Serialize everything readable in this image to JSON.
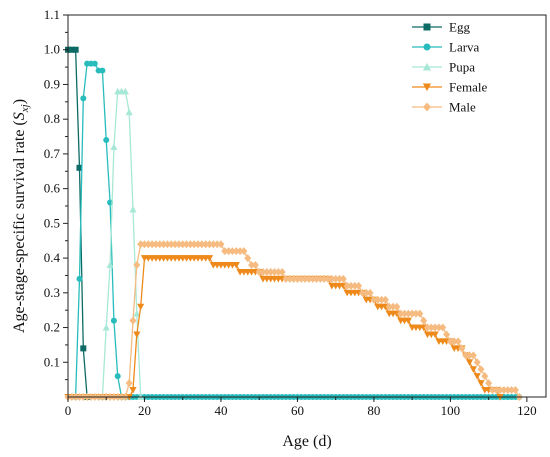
{
  "chart_data": {
    "type": "line",
    "title": "",
    "xlabel": "Age (d)",
    "ylabel": {
      "main": "Age-stage-specific survival rate (",
      "symbol": "S",
      "subscript": "xj",
      "close": ")"
    },
    "xlim": [
      0,
      125
    ],
    "ylim": [
      0,
      1.1
    ],
    "x_ticks": [
      "0",
      "20",
      "40",
      "60",
      "80",
      "100",
      "120"
    ],
    "y_ticks": [
      "0.1",
      "0.2",
      "0.3",
      "0.4",
      "0.5",
      "0.6",
      "0.7",
      "0.8",
      "0.9",
      "1.0",
      "1.1"
    ],
    "grid": false,
    "legend_position": "top-right",
    "series": [
      {
        "name": "Egg",
        "color": "#0d6b66",
        "marker": "square",
        "points": [
          [
            0,
            1.0
          ],
          [
            1,
            1.0
          ],
          [
            2,
            1.0
          ],
          [
            3,
            0.66
          ],
          [
            4,
            0.14
          ],
          [
            5,
            0
          ]
        ]
      },
      {
        "name": "Larva",
        "color": "#29bcbc",
        "marker": "circle",
        "points": [
          [
            2,
            0
          ],
          [
            3,
            0.34
          ],
          [
            4,
            0.86
          ],
          [
            5,
            0.96
          ],
          [
            6,
            0.96
          ],
          [
            7,
            0.96
          ],
          [
            8,
            0.94
          ],
          [
            9,
            0.94
          ],
          [
            10,
            0.74
          ],
          [
            11,
            0.56
          ],
          [
            12,
            0.22
          ],
          [
            13,
            0.06
          ],
          [
            14,
            0
          ],
          [
            20,
            0
          ],
          [
            40,
            0
          ],
          [
            60,
            0
          ],
          [
            80,
            0
          ],
          [
            100,
            0
          ],
          [
            118,
            0
          ]
        ]
      },
      {
        "name": "Pupa",
        "color": "#a8e8d6",
        "marker": "triangle-up",
        "points": [
          [
            9,
            0
          ],
          [
            10,
            0.2
          ],
          [
            11,
            0.38
          ],
          [
            12,
            0.72
          ],
          [
            13,
            0.88
          ],
          [
            14,
            0.88
          ],
          [
            15,
            0.88
          ],
          [
            16,
            0.82
          ],
          [
            17,
            0.54
          ],
          [
            18,
            0.24
          ],
          [
            19,
            0
          ]
        ]
      },
      {
        "name": "Female",
        "color": "#ee8a1c",
        "marker": "triangle-down",
        "points": [
          [
            0,
            0
          ],
          [
            10,
            0
          ],
          [
            16,
            0
          ],
          [
            17,
            0.02
          ],
          [
            18,
            0.18
          ],
          [
            19,
            0.26
          ],
          [
            20,
            0.4
          ],
          [
            30,
            0.4
          ],
          [
            37,
            0.4
          ],
          [
            38,
            0.38
          ],
          [
            44,
            0.38
          ],
          [
            45,
            0.36
          ],
          [
            50,
            0.36
          ],
          [
            51,
            0.34
          ],
          [
            68,
            0.34
          ],
          [
            69,
            0.32
          ],
          [
            72,
            0.32
          ],
          [
            73,
            0.3
          ],
          [
            77,
            0.3
          ],
          [
            78,
            0.28
          ],
          [
            80,
            0.28
          ],
          [
            81,
            0.26
          ],
          [
            83,
            0.26
          ],
          [
            84,
            0.24
          ],
          [
            86,
            0.24
          ],
          [
            87,
            0.22
          ],
          [
            89,
            0.22
          ],
          [
            90,
            0.2
          ],
          [
            93,
            0.2
          ],
          [
            94,
            0.18
          ],
          [
            96,
            0.18
          ],
          [
            97,
            0.16
          ],
          [
            100,
            0.16
          ],
          [
            101,
            0.14
          ],
          [
            103,
            0.14
          ],
          [
            104,
            0.12
          ],
          [
            105,
            0.1
          ],
          [
            106,
            0.08
          ],
          [
            107,
            0.06
          ],
          [
            108,
            0.04
          ],
          [
            109,
            0.02
          ],
          [
            112,
            0.02
          ],
          [
            113,
            0
          ]
        ]
      },
      {
        "name": "Male",
        "color": "#f5bb80",
        "marker": "diamond",
        "points": [
          [
            0,
            0
          ],
          [
            15,
            0
          ],
          [
            16,
            0.04
          ],
          [
            17,
            0.22
          ],
          [
            18,
            0.38
          ],
          [
            19,
            0.44
          ],
          [
            30,
            0.44
          ],
          [
            40,
            0.44
          ],
          [
            41,
            0.42
          ],
          [
            46,
            0.42
          ],
          [
            47,
            0.4
          ],
          [
            48,
            0.38
          ],
          [
            49,
            0.38
          ],
          [
            50,
            0.36
          ],
          [
            56,
            0.36
          ],
          [
            57,
            0.34
          ],
          [
            72,
            0.34
          ],
          [
            73,
            0.32
          ],
          [
            76,
            0.32
          ],
          [
            77,
            0.3
          ],
          [
            79,
            0.3
          ],
          [
            80,
            0.28
          ],
          [
            83,
            0.28
          ],
          [
            84,
            0.26
          ],
          [
            86,
            0.26
          ],
          [
            87,
            0.24
          ],
          [
            92,
            0.24
          ],
          [
            93,
            0.22
          ],
          [
            94,
            0.2
          ],
          [
            98,
            0.2
          ],
          [
            99,
            0.18
          ],
          [
            100,
            0.16
          ],
          [
            102,
            0.16
          ],
          [
            103,
            0.14
          ],
          [
            104,
            0.12
          ],
          [
            106,
            0.12
          ],
          [
            107,
            0.1
          ],
          [
            108,
            0.08
          ],
          [
            109,
            0.06
          ],
          [
            110,
            0.04
          ],
          [
            111,
            0.02
          ],
          [
            117,
            0.02
          ],
          [
            118,
            0
          ]
        ]
      }
    ]
  }
}
